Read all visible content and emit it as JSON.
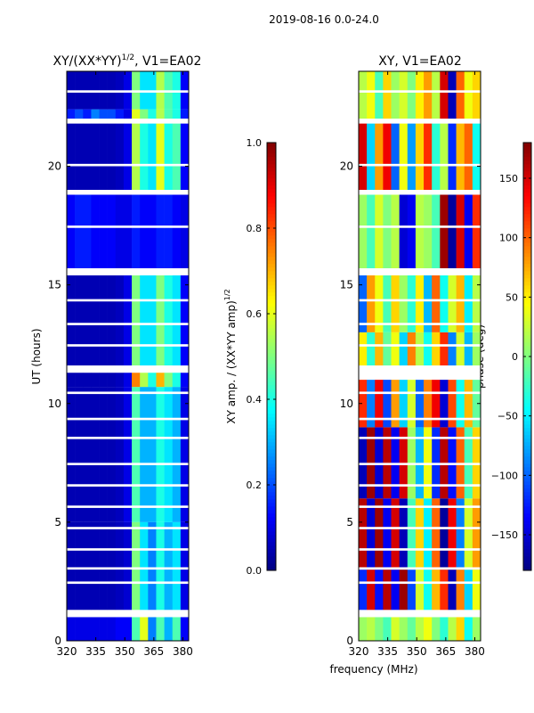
{
  "figure": {
    "suptitle": "2019-08-16 0.0-24.0",
    "xlabel": "frequency (MHz)"
  },
  "chart_data": [
    {
      "type": "heatmap",
      "title": "XY/(XX*YY)",
      "title_superscript": "1/2",
      "title_suffix": ", V1=EA02",
      "xlabel": "",
      "ylabel": "UT (hours)",
      "xlim": [
        320,
        383
      ],
      "ylim": [
        0,
        24
      ],
      "xticks": [
        320,
        335,
        350,
        365,
        380
      ],
      "yticks": [
        0,
        5,
        10,
        15,
        20
      ],
      "colorbar": {
        "label": "XY amp. / (XX*YY amp)",
        "label_superscript": "1/2",
        "vmin": 0.0,
        "vmax": 1.0,
        "ticks": [
          "0.0",
          "0.2",
          "0.4",
          "0.6",
          "0.8",
          "1.0"
        ],
        "tick_values": [
          0.0,
          0.2,
          0.4,
          0.6,
          0.8,
          1.0
        ],
        "colormap": "jet"
      },
      "rows": [
        {
          "t0": 0.0,
          "t1": 1.0,
          "values": [
            0.1,
            0.1,
            0.1,
            0.1,
            0.1,
            0.1,
            0.12,
            0.12,
            0.45,
            0.6,
            0.25,
            0.45,
            0.3,
            0.45,
            0.12
          ]
        },
        {
          "t0": 1.3,
          "t1": 5.0,
          "values": [
            0.05,
            0.05,
            0.05,
            0.05,
            0.05,
            0.05,
            0.06,
            0.08,
            0.5,
            0.35,
            0.25,
            0.4,
            0.3,
            0.35,
            0.1
          ]
        },
        {
          "t0": 5.0,
          "t1": 10.7,
          "values": [
            0.05,
            0.05,
            0.05,
            0.05,
            0.05,
            0.05,
            0.06,
            0.1,
            0.45,
            0.3,
            0.3,
            0.4,
            0.35,
            0.3,
            0.1
          ]
        },
        {
          "t0": 10.7,
          "t1": 11.3,
          "values": [
            0.05,
            0.05,
            0.05,
            0.05,
            0.05,
            0.05,
            0.06,
            0.1,
            0.75,
            0.55,
            0.4,
            0.7,
            0.5,
            0.4,
            0.12
          ]
        },
        {
          "t0": 11.6,
          "t1": 15.4,
          "values": [
            0.05,
            0.05,
            0.05,
            0.05,
            0.05,
            0.05,
            0.06,
            0.1,
            0.5,
            0.35,
            0.35,
            0.5,
            0.4,
            0.35,
            0.12
          ]
        },
        {
          "t0": 15.7,
          "t1": 18.8,
          "values": [
            0.12,
            0.15,
            0.15,
            0.12,
            0.12,
            0.12,
            0.1,
            0.1,
            0.15,
            0.12,
            0.12,
            0.15,
            0.15,
            0.12,
            0.1
          ]
        },
        {
          "t0": 19.0,
          "t1": 21.8,
          "values": [
            0.05,
            0.05,
            0.05,
            0.05,
            0.05,
            0.05,
            0.06,
            0.1,
            0.55,
            0.4,
            0.35,
            0.6,
            0.4,
            0.45,
            0.12
          ]
        },
        {
          "t0": 22.0,
          "t1": 22.4,
          "values": [
            0.15,
            0.2,
            0.15,
            0.25,
            0.2,
            0.2,
            0.15,
            0.1,
            0.6,
            0.5,
            0.4,
            0.55,
            0.45,
            0.4,
            0.15
          ]
        },
        {
          "t0": 22.4,
          "t1": 24.0,
          "values": [
            0.05,
            0.05,
            0.05,
            0.05,
            0.05,
            0.05,
            0.06,
            0.1,
            0.5,
            0.35,
            0.35,
            0.55,
            0.45,
            0.4,
            0.12
          ]
        }
      ],
      "flagged_bands": [
        [
          1.0,
          1.3
        ],
        [
          2.4,
          2.5
        ],
        [
          3.0,
          3.1
        ],
        [
          3.8,
          3.9
        ],
        [
          4.7,
          4.8
        ],
        [
          5.6,
          5.7
        ],
        [
          6.5,
          6.6
        ],
        [
          7.4,
          7.5
        ],
        [
          8.5,
          8.6
        ],
        [
          9.3,
          9.4
        ],
        [
          10.4,
          10.5
        ],
        [
          11.3,
          11.6
        ],
        [
          12.4,
          12.5
        ],
        [
          13.3,
          13.4
        ],
        [
          14.3,
          14.4
        ],
        [
          15.4,
          15.7
        ],
        [
          17.4,
          17.5
        ],
        [
          18.8,
          19.0
        ],
        [
          20.0,
          20.1
        ],
        [
          21.8,
          22.0
        ],
        [
          23.1,
          23.2
        ]
      ]
    },
    {
      "type": "heatmap",
      "title": "XY, V1=EA02",
      "xlabel": "",
      "ylabel": "",
      "xlim": [
        320,
        383
      ],
      "ylim": [
        0,
        24
      ],
      "xticks": [
        320,
        335,
        350,
        365,
        380
      ],
      "yticks": [
        0,
        5,
        10,
        15,
        20
      ],
      "colorbar": {
        "label": "phase (deg)",
        "vmin": -180,
        "vmax": 180,
        "ticks": [
          "−150",
          "−100",
          "−50",
          "0",
          "50",
          "100",
          "150"
        ],
        "tick_values": [
          -150,
          -100,
          -50,
          0,
          50,
          100,
          150
        ],
        "colormap": "jet"
      },
      "rows": [
        {
          "t0": 0.0,
          "t1": 1.0,
          "values": [
            10,
            20,
            0,
            -20,
            30,
            10,
            -10,
            20,
            40,
            0,
            -30,
            20,
            60,
            -40,
            10
          ]
        },
        {
          "t0": 1.3,
          "t1": 3.0,
          "values": [
            -120,
            150,
            -130,
            160,
            -140,
            170,
            -110,
            30,
            -40,
            70,
            120,
            -160,
            90,
            -60,
            40
          ]
        },
        {
          "t0": 3.0,
          "t1": 6.0,
          "values": [
            160,
            -150,
            170,
            -140,
            150,
            -160,
            -20,
            60,
            -50,
            100,
            -170,
            140,
            -90,
            30,
            80
          ]
        },
        {
          "t0": 6.0,
          "t1": 9.0,
          "values": [
            -160,
            170,
            -150,
            160,
            -140,
            150,
            10,
            -70,
            40,
            -120,
            160,
            -130,
            100,
            -20,
            60
          ]
        },
        {
          "t0": 9.0,
          "t1": 11.0,
          "values": [
            120,
            -90,
            140,
            -110,
            80,
            -60,
            30,
            -100,
            90,
            140,
            -150,
            110,
            -40,
            70,
            -10
          ]
        },
        {
          "t0": 11.6,
          "t1": 13.0,
          "values": [
            50,
            -30,
            70,
            -10,
            40,
            -60,
            90,
            20,
            -40,
            60,
            120,
            -90,
            30,
            -70,
            10
          ]
        },
        {
          "t0": 13.0,
          "t1": 15.4,
          "values": [
            -100,
            80,
            40,
            -20,
            60,
            10,
            -30,
            50,
            -70,
            100,
            -40,
            30,
            70,
            -50,
            20
          ]
        },
        {
          "t0": 15.7,
          "t1": 18.8,
          "values": [
            10,
            -20,
            30,
            0,
            20,
            -150,
            -140,
            20,
            10,
            -20,
            170,
            -170,
            150,
            -140,
            120
          ]
        },
        {
          "t0": 19.0,
          "t1": 21.8,
          "values": [
            150,
            -60,
            80,
            140,
            -100,
            40,
            -80,
            60,
            120,
            -30,
            20,
            -120,
            70,
            100,
            -40
          ]
        },
        {
          "t0": 22.0,
          "t1": 24.0,
          "values": [
            20,
            40,
            -20,
            60,
            10,
            30,
            0,
            50,
            80,
            20,
            150,
            -160,
            100,
            40,
            60
          ]
        }
      ],
      "flagged_bands": [
        [
          1.0,
          1.3
        ],
        [
          2.4,
          2.5
        ],
        [
          3.0,
          3.1
        ],
        [
          3.8,
          3.9
        ],
        [
          4.7,
          4.8
        ],
        [
          5.6,
          5.7
        ],
        [
          6.5,
          6.6
        ],
        [
          7.4,
          7.5
        ],
        [
          8.5,
          8.6
        ],
        [
          9.3,
          9.4
        ],
        [
          10.4,
          10.5
        ],
        [
          11.3,
          11.6
        ],
        [
          12.4,
          12.5
        ],
        [
          13.3,
          13.4
        ],
        [
          14.3,
          14.4
        ],
        [
          15.4,
          15.7
        ],
        [
          17.4,
          17.5
        ],
        [
          18.8,
          19.0
        ],
        [
          20.0,
          20.1
        ],
        [
          21.8,
          22.0
        ],
        [
          23.1,
          23.2
        ]
      ]
    }
  ]
}
